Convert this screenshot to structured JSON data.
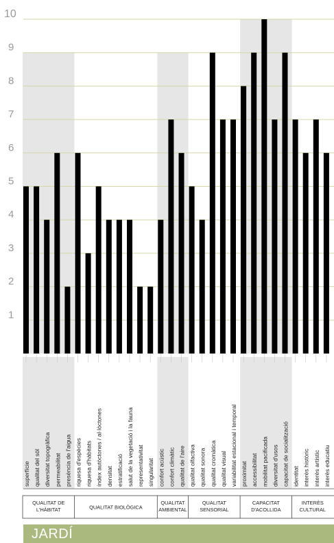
{
  "chart_data": {
    "type": "bar",
    "ylim": [
      0,
      10
    ],
    "yticks": [
      "1",
      "2",
      "3",
      "4",
      "5",
      "6",
      "7",
      "8",
      "9",
      "10"
    ],
    "categories": [
      "superfície",
      "qualitat del sòl",
      "diversitat topogràfica",
      "permeabilitat",
      "presència de l'aigua",
      "riquesa d'espècies",
      "riquesa d'hàbitats",
      "índex autòctones / al·lòctones",
      "densitat",
      "estratificació",
      "salut de la vegetació i la fauna",
      "representativitat",
      "singularitat",
      "confort acústic",
      "confort climàtic",
      "qualitat de l'aire",
      "qualitat olfactiva",
      "qualitat sonora",
      "qualitat cromàtica",
      "qualitat visual",
      "variabilitat estacional i temporal",
      "proximitat",
      "accessibilitat",
      "mobilitat pacificada",
      "diversitat d'usos",
      "capacitat de socialització",
      "identitat",
      "interès històric",
      "interès artístic",
      "interès educatiu"
    ],
    "values": [
      5,
      5,
      4,
      6,
      2,
      6,
      3,
      5,
      4,
      4,
      4,
      2,
      2,
      4,
      7,
      6,
      5,
      4,
      9,
      7,
      7,
      8,
      9,
      10,
      7,
      9,
      7,
      6,
      7,
      6
    ],
    "groups": [
      {
        "label": "QUALITAT DE L'HÀBITAT",
        "start": 0,
        "count": 5,
        "shaded": true
      },
      {
        "label": "QUALITAT BIOLÒGICA",
        "start": 5,
        "count": 8,
        "shaded": false
      },
      {
        "label": "QUALITAT AMBIENTAL",
        "start": 13,
        "count": 3,
        "shaded": true
      },
      {
        "label": "QUALITAT SENSORIAL",
        "start": 16,
        "count": 5,
        "shaded": false
      },
      {
        "label": "CAPACITAT D'ACOLLIDA",
        "start": 21,
        "count": 5,
        "shaded": true
      },
      {
        "label": "INTERÈS CULTURAL",
        "start": 26,
        "count": 4,
        "shaded": false
      }
    ],
    "colors": {
      "bar": "#000000",
      "shade": "#e6e6e6",
      "grid": "#d6d6a6",
      "tick": "#9a9a9a"
    }
  },
  "footer": {
    "title": "JARDÍ"
  }
}
